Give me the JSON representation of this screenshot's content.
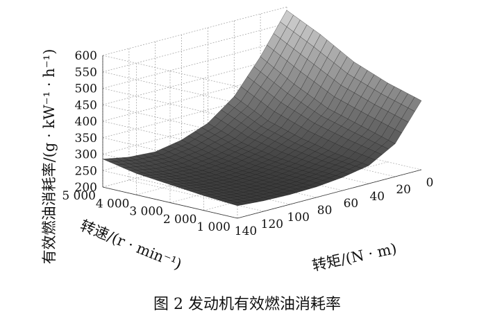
{
  "figure": {
    "caption": "图 2  发动机有效燃油消耗率",
    "ylabel_axis_text": "有效燃油消耗率/(g · kW⁻¹ · h⁻¹)"
  },
  "chart_data": {
    "type": "surface",
    "title": "",
    "zlabel": "有效燃油消耗率/(g · kW⁻¹ · h⁻¹)",
    "xlabel": "转矩/(N · m)",
    "ylabel": "转速/(r · min⁻¹)",
    "z_ticks": [
      "200",
      "250",
      "300",
      "350",
      "400",
      "450",
      "500",
      "550",
      "600"
    ],
    "torque_ticks": [
      "0",
      "20",
      "40",
      "60",
      "80",
      "100",
      "120",
      "140"
    ],
    "speed_ticks": [
      "1 000",
      "2 000",
      "3 000",
      "4 000",
      "5 000"
    ],
    "torque_range": [
      0,
      140
    ],
    "speed_range": [
      1000,
      5000
    ],
    "z_range": [
      200,
      600
    ],
    "grid": true,
    "torque_values": [
      0,
      20,
      40,
      60,
      80,
      100,
      120,
      140
    ],
    "speed_values": [
      1000,
      2000,
      3000,
      4000,
      5000
    ],
    "fuel_consumption": [
      [
        410,
        300,
        255,
        240,
        232,
        230,
        232,
        238
      ],
      [
        440,
        330,
        268,
        245,
        235,
        232,
        235,
        245
      ],
      [
        480,
        360,
        290,
        255,
        240,
        236,
        240,
        255
      ],
      [
        540,
        410,
        320,
        275,
        255,
        245,
        250,
        265
      ],
      [
        590,
        470,
        370,
        310,
        280,
        265,
        270,
        285
      ]
    ],
    "shading_colors": {
      "low": "#3a3a3a",
      "high": "#d8d8d8"
    }
  }
}
